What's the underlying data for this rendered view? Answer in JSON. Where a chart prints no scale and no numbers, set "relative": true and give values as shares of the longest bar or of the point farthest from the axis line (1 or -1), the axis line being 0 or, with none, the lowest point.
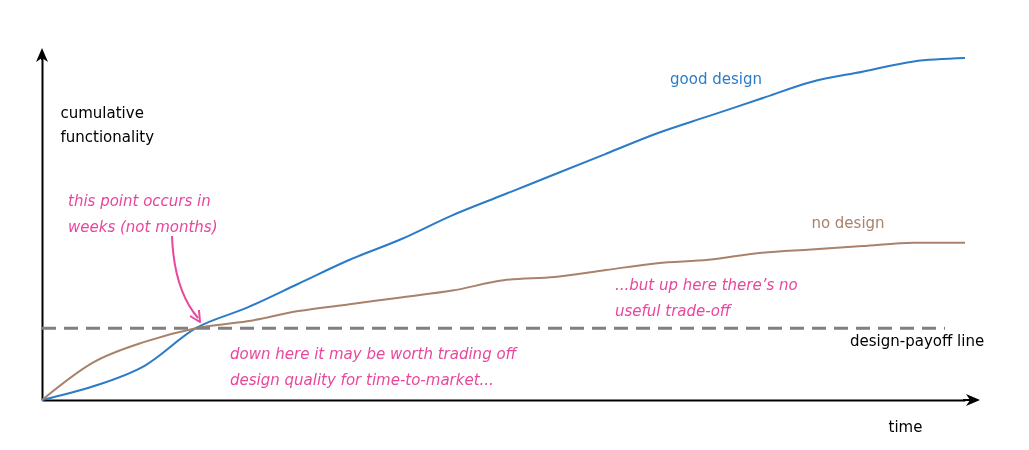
{
  "chart_data": {
    "type": "line",
    "relative": true,
    "xlabel": "time",
    "ylabel": "cumulative\nfunctionality",
    "categories": [
      null,
      null,
      null,
      null,
      null,
      null,
      null,
      null,
      null,
      null,
      null,
      null,
      null,
      null,
      null,
      null,
      null,
      null,
      null
    ],
    "series": [
      {
        "name": "good design",
        "color": "#2a7bc8",
        "values": [
          0,
          0.04,
          0.1,
          0.21,
          0.27,
          0.34,
          0.41,
          0.47,
          0.54,
          0.6,
          0.66,
          0.72,
          0.78,
          0.83,
          0.88,
          0.93,
          0.96,
          0.99,
          1
        ]
      },
      {
        "name": "no design",
        "color": "#a8826a",
        "values": [
          0,
          0.11,
          0.17,
          0.21,
          0.23,
          0.26,
          0.28,
          0.3,
          0.32,
          0.35,
          0.36,
          0.38,
          0.4,
          0.41,
          0.43,
          0.44,
          0.45,
          0.46,
          0.46
        ]
      }
    ],
    "ref_lines": [
      {
        "axis": "y",
        "value": 0.21,
        "label": "design-payoff line",
        "color": "#808080",
        "line_style": "dashed"
      }
    ],
    "annotations": [
      "this point occurs in\nweeks (not months)",
      "down here it may be worth trading off\ndesign quality for time-to-market...",
      "...but up here there’s no\nuseful trade-off"
    ]
  }
}
